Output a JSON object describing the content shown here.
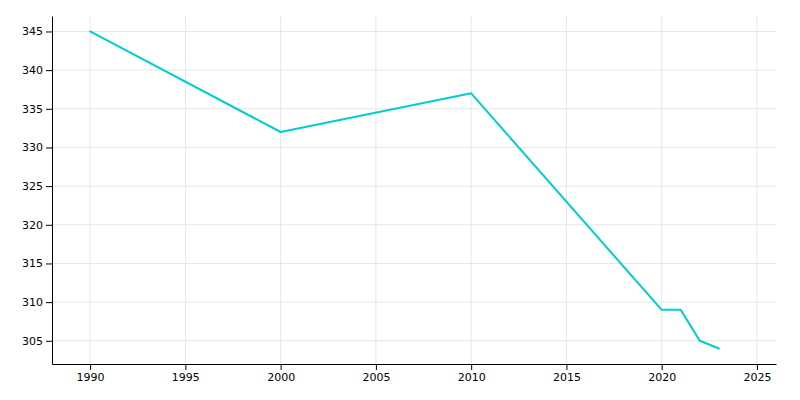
{
  "chart_data": {
    "type": "line",
    "x": [
      1990,
      2000,
      2010,
      2020,
      2021,
      2022,
      2023
    ],
    "values": [
      345,
      332,
      337,
      309,
      309,
      305,
      304
    ],
    "color": "#00CED1",
    "xlim": [
      1988,
      2026
    ],
    "ylim": [
      302,
      347
    ],
    "xticks": [
      1990,
      1995,
      2000,
      2005,
      2010,
      2015,
      2020,
      2025
    ],
    "yticks": [
      305,
      310,
      315,
      320,
      325,
      330,
      335,
      340,
      345
    ],
    "grid": true
  }
}
